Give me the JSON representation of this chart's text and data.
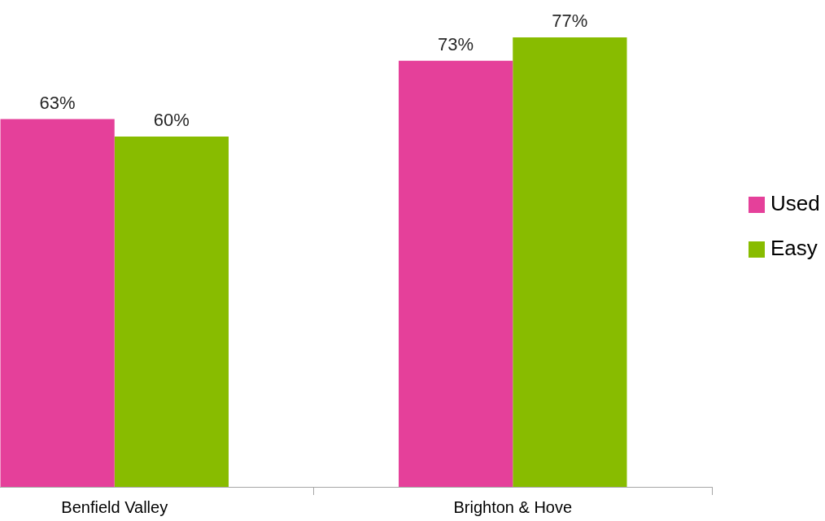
{
  "chart_data": {
    "type": "bar",
    "categories": [
      "Benfield Valley",
      "Brighton & Hove"
    ],
    "series": [
      {
        "name": "Used",
        "color": "#e5409a",
        "values": [
          63,
          73
        ],
        "value_labels": [
          "63%",
          "73%"
        ]
      },
      {
        "name": "Easy",
        "color": "#88bc00",
        "values": [
          60,
          77
        ],
        "value_labels": [
          "60%",
          "77%"
        ]
      }
    ],
    "legend": "right",
    "grid": false
  }
}
